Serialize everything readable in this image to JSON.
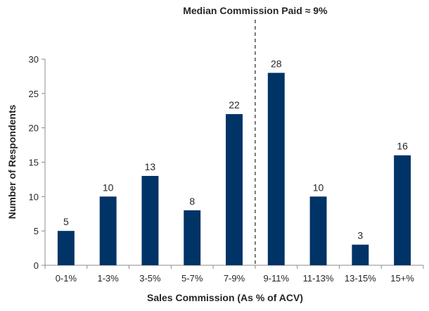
{
  "chart_data": {
    "type": "bar",
    "categories": [
      "0-1%",
      "1-3%",
      "3-5%",
      "5-7%",
      "7-9%",
      "9-11%",
      "11-13%",
      "13-15%",
      "15+%"
    ],
    "values": [
      5,
      10,
      13,
      8,
      22,
      28,
      10,
      3,
      16
    ],
    "title": "",
    "xlabel": "Sales Commission (As % of ACV)",
    "ylabel": "Number of Respondents",
    "ylim": [
      0,
      30
    ],
    "yticks": [
      0,
      5,
      10,
      15,
      20,
      25,
      30
    ],
    "grid": false,
    "bar_color": "#003366",
    "annotation": {
      "text": "Median Commission Paid ≈ 9%",
      "x_value": 9,
      "position_between_categories": [
        "7-9%",
        "9-11%"
      ],
      "line_style": "dashed"
    }
  }
}
